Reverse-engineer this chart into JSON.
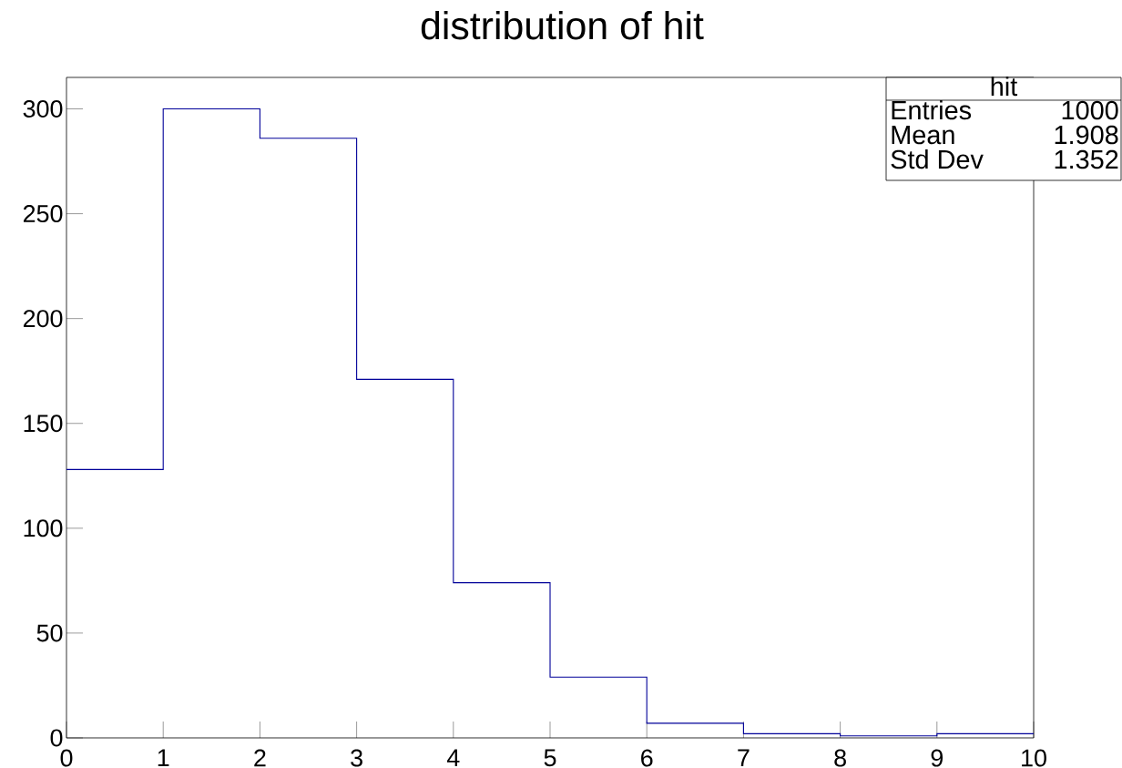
{
  "chart_data": {
    "type": "histogram",
    "title": "distribution of hit",
    "bins": [
      0,
      1,
      2,
      3,
      4,
      5,
      6,
      7,
      8,
      9,
      10
    ],
    "values": [
      128,
      300,
      286,
      171,
      74,
      29,
      7,
      2,
      1,
      2
    ],
    "color": "#000099",
    "xlim": [
      0,
      10
    ],
    "ylim": [
      0,
      315
    ],
    "xticks": [
      0,
      1,
      2,
      3,
      4,
      5,
      6,
      7,
      8,
      9,
      10
    ],
    "yticks": [
      0,
      50,
      100,
      150,
      200,
      250,
      300
    ],
    "grid": false,
    "legend": false,
    "annotations": [
      "hit",
      "Entries",
      "1000",
      "Mean",
      "1.908",
      "Std Dev",
      "1.352"
    ]
  }
}
